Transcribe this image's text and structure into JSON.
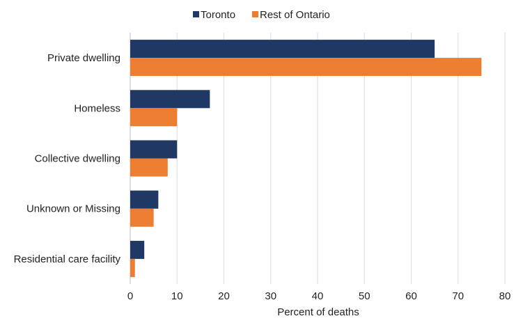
{
  "chart_data": {
    "type": "bar",
    "orientation": "horizontal",
    "categories": [
      "Private dwelling",
      "Homeless",
      "Collective dwelling",
      "Unknown or Missing",
      "Residential care facility"
    ],
    "series": [
      {
        "name": "Toronto",
        "values": [
          65,
          17,
          10,
          6,
          3
        ],
        "color": "#1f3864"
      },
      {
        "name": "Rest of Ontario",
        "values": [
          75,
          10,
          8,
          5,
          1
        ],
        "color": "#ed7d31"
      }
    ],
    "xlabel": "Percent of deaths",
    "ylabel": "",
    "xlim": [
      0,
      80
    ],
    "xticks": [
      "0",
      "10",
      "20",
      "30",
      "40",
      "50",
      "60",
      "70",
      "80"
    ],
    "grid": "vertical",
    "legend_position": "top"
  }
}
